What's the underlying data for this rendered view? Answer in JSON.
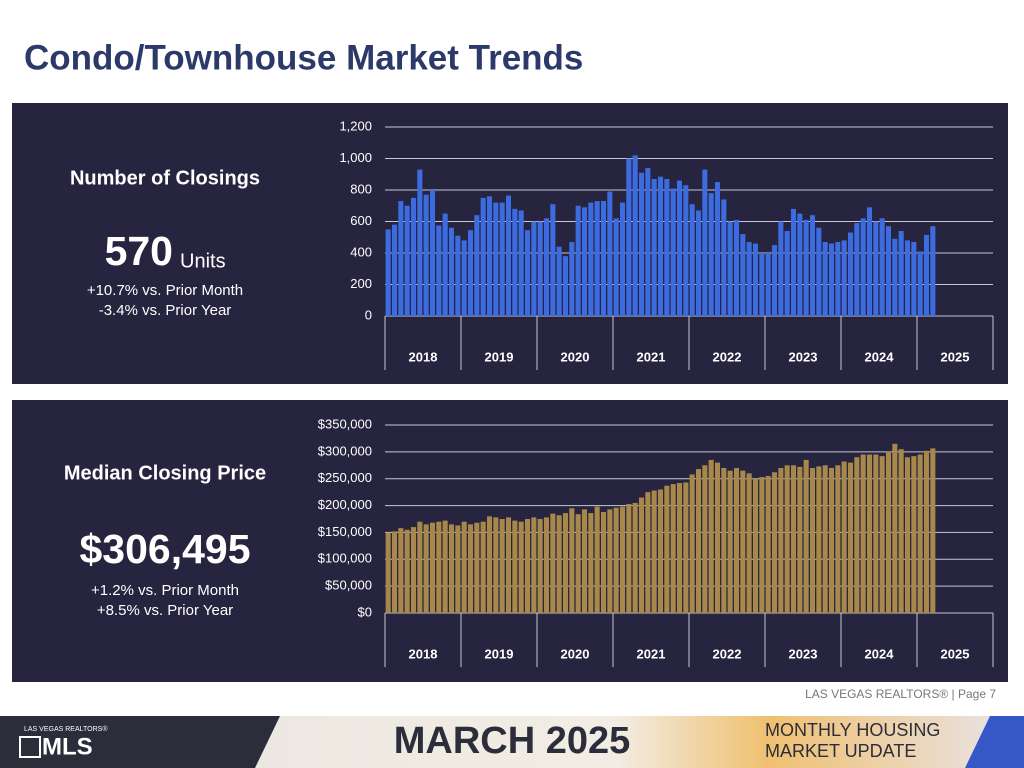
{
  "title": "Condo/Townhouse Market Trends",
  "chart_data": [
    {
      "type": "bar",
      "title": "Number of Closings",
      "stat_value": "570",
      "stat_unit": "Units",
      "notes": [
        "+10.7% vs. Prior Month",
        "-3.4% vs. Prior Year"
      ],
      "color": "#3d6ce0",
      "groups": [
        "2018",
        "2019",
        "2020",
        "2021",
        "2022",
        "2023",
        "2024",
        "2025"
      ],
      "categories": [
        null,
        null,
        null,
        null,
        null,
        null,
        null,
        null,
        null,
        null,
        null,
        null,
        null,
        null,
        null,
        null,
        null,
        null,
        null,
        null,
        null,
        null,
        null,
        null,
        null,
        null,
        null,
        null,
        null,
        null,
        null,
        null,
        null,
        null,
        null,
        null,
        null,
        null,
        null,
        null,
        null,
        null,
        null,
        null,
        null,
        null,
        null,
        null,
        null,
        null,
        null,
        null,
        null,
        null,
        null,
        null,
        null,
        null,
        null,
        null,
        null,
        null,
        null,
        null,
        null,
        null,
        null,
        null,
        null,
        null,
        null,
        null,
        null,
        null,
        null,
        null,
        null,
        null,
        null,
        null,
        null,
        null,
        null,
        null,
        null,
        null,
        null
      ],
      "values": [
        550,
        580,
        730,
        700,
        750,
        930,
        770,
        800,
        575,
        650,
        560,
        510,
        480,
        545,
        640,
        750,
        760,
        720,
        720,
        765,
        680,
        670,
        545,
        600,
        600,
        620,
        710,
        440,
        380,
        470,
        700,
        690,
        720,
        730,
        730,
        790,
        620,
        720,
        1000,
        1020,
        910,
        940,
        870,
        885,
        870,
        810,
        860,
        830,
        710,
        670,
        930,
        780,
        850,
        740,
        600,
        610,
        520,
        470,
        460,
        400,
        400,
        450,
        600,
        540,
        680,
        650,
        610,
        640,
        560,
        470,
        460,
        470,
        480,
        530,
        590,
        620,
        690,
        600,
        620,
        570,
        490,
        540,
        480,
        470,
        410,
        515,
        570
      ],
      "ylim": [
        0,
        1200
      ],
      "yticks": [
        0,
        200,
        400,
        600,
        800,
        {
          "value": 1000,
          "label": "1,000"
        },
        {
          "value": 1200,
          "label": "1,200"
        }
      ],
      "grid": true
    },
    {
      "type": "bar",
      "title": "Median Closing Price",
      "stat_value": "$306,495",
      "notes": [
        "+1.2% vs. Prior Month",
        "+8.5% vs. Prior Year"
      ],
      "color": "#a8874b",
      "groups": [
        "2018",
        "2019",
        "2020",
        "2021",
        "2022",
        "2023",
        "2024",
        "2025"
      ],
      "categories": [
        null,
        null,
        null,
        null,
        null,
        null,
        null,
        null,
        null,
        null,
        null,
        null,
        null,
        null,
        null,
        null,
        null,
        null,
        null,
        null,
        null,
        null,
        null,
        null,
        null,
        null,
        null,
        null,
        null,
        null,
        null,
        null,
        null,
        null,
        null,
        null,
        null,
        null,
        null,
        null,
        null,
        null,
        null,
        null,
        null,
        null,
        null,
        null,
        null,
        null,
        null,
        null,
        null,
        null,
        null,
        null,
        null,
        null,
        null,
        null,
        null,
        null,
        null,
        null,
        null,
        null,
        null,
        null,
        null,
        null,
        null,
        null,
        null,
        null,
        null,
        null,
        null,
        null,
        null,
        null,
        null,
        null,
        null,
        null,
        null,
        null,
        null
      ],
      "values": [
        150000,
        152000,
        158000,
        155000,
        160000,
        170000,
        165000,
        168000,
        170000,
        172000,
        165000,
        163000,
        170000,
        165000,
        168000,
        170000,
        180000,
        178000,
        175000,
        178000,
        172000,
        170000,
        175000,
        178000,
        175000,
        178000,
        185000,
        182000,
        186000,
        195000,
        184000,
        193000,
        186000,
        198000,
        188000,
        193000,
        196000,
        198000,
        203000,
        205000,
        215000,
        225000,
        228000,
        230000,
        237000,
        240000,
        242000,
        243000,
        258000,
        268000,
        275000,
        285000,
        280000,
        270000,
        265000,
        270000,
        265000,
        260000,
        250000,
        253000,
        255000,
        262000,
        270000,
        275000,
        275000,
        272000,
        285000,
        270000,
        273000,
        275000,
        270000,
        275000,
        282000,
        280000,
        290000,
        295000,
        295000,
        295000,
        292000,
        300000,
        315000,
        305000,
        290000,
        292000,
        295000,
        302000,
        306495
      ],
      "ylim": [
        0,
        350000
      ],
      "yticks": [
        {
          "value": 0,
          "label": "$0"
        },
        {
          "value": 50000,
          "label": "$50,000"
        },
        {
          "value": 100000,
          "label": "$100,000"
        },
        {
          "value": 150000,
          "label": "$150,000"
        },
        {
          "value": 200000,
          "label": "$200,000"
        },
        {
          "value": 250000,
          "label": "$250,000"
        },
        {
          "value": 300000,
          "label": "$300,000"
        },
        {
          "value": 350000,
          "label": "$350,000"
        }
      ],
      "grid": true
    }
  ],
  "footer": "LAS VEGAS REALTORS® | Page 7",
  "banner": {
    "logo_top": "LAS VEGAS REALTORS®",
    "logo": "MLS",
    "date": "MARCH 2025",
    "line1": "MONTHLY HOUSING",
    "line2": "MARKET UPDATE"
  }
}
